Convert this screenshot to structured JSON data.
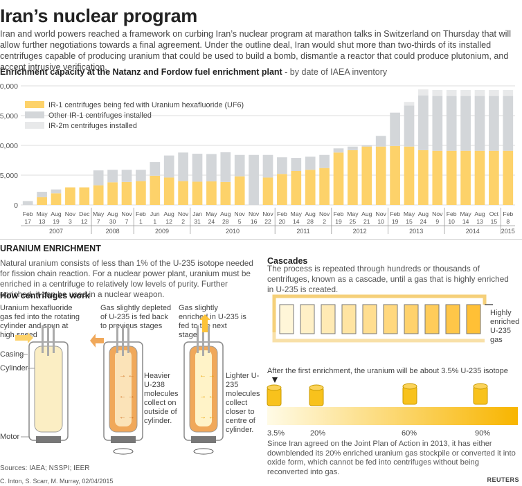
{
  "title": "Iran’s nuclear program",
  "intro": "Iran and world powers reached a framework on curbing Iran’s nuclear program at marathon talks in Switzerland on Thursday that will allow further negotiations towards a final agreement. Under the outline deal, Iran would shut more than two-thirds of its installed centrifuges capable of producing uranium that could be used to build a bomb, dismantle a reactor that could produce plutonium, and accept intrusive verification.",
  "chart_heading": "Enrichment capacity at the Natanz and Fordow fuel enrichment plant",
  "chart_subheading": " - by date of IAEA inventory",
  "colors": {
    "fed": "#fdd26a",
    "installed": "#d3d6d9",
    "ir2m": "#e8e9ea",
    "text": "#555555"
  },
  "chart_data": {
    "type": "bar",
    "stacked": true,
    "ylim": [
      0,
      20000
    ],
    "yticks": [
      "0",
      "5,000",
      "10,000",
      "15,000",
      "20,000"
    ],
    "legend": [
      "IR-1 centrifuges being fed with Uranium hexafluoride (UF6)",
      "Other IR-1 centrifuges installed",
      "IR-2m centrifuges installed"
    ],
    "categories": [
      {
        "m": "Feb",
        "d": "17"
      },
      {
        "m": "May",
        "d": "13"
      },
      {
        "m": "Aug",
        "d": "19"
      },
      {
        "m": "Nov",
        "d": "3"
      },
      {
        "m": "Dec",
        "d": "12"
      },
      {
        "m": "May",
        "d": "7"
      },
      {
        "m": "Aug",
        "d": "30"
      },
      {
        "m": "Nov",
        "d": "7"
      },
      {
        "m": "Feb",
        "d": "1"
      },
      {
        "m": "Jun",
        "d": "1"
      },
      {
        "m": "Aug",
        "d": "12"
      },
      {
        "m": "Nov",
        "d": "2"
      },
      {
        "m": "Jan",
        "d": "31"
      },
      {
        "m": "May",
        "d": "24"
      },
      {
        "m": "Aug",
        "d": "28"
      },
      {
        "m": "Nov",
        "d": "5"
      },
      {
        "m": "Nov",
        "d": "16"
      },
      {
        "m": "Nov",
        "d": "22"
      },
      {
        "m": "Feb",
        "d": "20"
      },
      {
        "m": "May",
        "d": "14"
      },
      {
        "m": "Aug",
        "d": "28"
      },
      {
        "m": "Nov",
        "d": "2"
      },
      {
        "m": "Feb",
        "d": "19"
      },
      {
        "m": "May",
        "d": "25"
      },
      {
        "m": "Aug",
        "d": "21"
      },
      {
        "m": "Nov",
        "d": "10"
      },
      {
        "m": "Feb",
        "d": "19"
      },
      {
        "m": "May",
        "d": "15"
      },
      {
        "m": "Aug",
        "d": "24"
      },
      {
        "m": "Nov",
        "d": "9"
      },
      {
        "m": "Feb",
        "d": "10"
      },
      {
        "m": "May",
        "d": "14"
      },
      {
        "m": "Aug",
        "d": "13"
      },
      {
        "m": "Oct",
        "d": "15"
      },
      {
        "m": "Feb",
        "d": "8"
      }
    ],
    "years": [
      {
        "label": "2007",
        "from": 0,
        "to": 4
      },
      {
        "label": "2008",
        "from": 5,
        "to": 7
      },
      {
        "label": "2009",
        "from": 8,
        "to": 11
      },
      {
        "label": "2010",
        "from": 12,
        "to": 17
      },
      {
        "label": "2011",
        "from": 18,
        "to": 21
      },
      {
        "label": "2012",
        "from": 22,
        "to": 25
      },
      {
        "label": "2013",
        "from": 26,
        "to": 29
      },
      {
        "label": "2014",
        "from": 30,
        "to": 33
      },
      {
        "label": "2015",
        "from": 34,
        "to": 34
      }
    ],
    "series": [
      {
        "name": "IR-1 centrifuges being fed with Uranium hexafluoride (UF6)",
        "values": [
          0,
          1300,
          1950,
          2950,
          2950,
          3300,
          3800,
          3850,
          4000,
          4900,
          4600,
          4000,
          3900,
          3950,
          3850,
          4800,
          0,
          4600,
          5200,
          5700,
          5900,
          6200,
          8800,
          9200,
          9800,
          9800,
          9900,
          9800,
          9200,
          9100,
          9100,
          9100,
          9100,
          9100,
          9100
        ]
      },
      {
        "name": "Other IR-1 centrifuges installed",
        "values": [
          650,
          900,
          650,
          0,
          0,
          2500,
          2100,
          2050,
          1900,
          2300,
          3700,
          4800,
          4700,
          4600,
          5000,
          3600,
          8400,
          3800,
          2800,
          2200,
          2200,
          2200,
          700,
          600,
          200,
          1800,
          5600,
          6900,
          9200,
          9200,
          9200,
          9200,
          9200,
          9200,
          9200
        ]
      },
      {
        "name": "IR-2m centrifuges installed",
        "values": [
          0,
          0,
          0,
          0,
          0,
          0,
          0,
          0,
          0,
          0,
          0,
          0,
          0,
          0,
          0,
          0,
          0,
          0,
          0,
          0,
          0,
          0,
          0,
          0,
          0,
          0,
          0,
          600,
          1000,
          1000,
          1000,
          1000,
          1000,
          1000,
          1000
        ]
      }
    ]
  },
  "enrichment": {
    "heading": "URANIUM ENRICHMENT",
    "text": "Natural uranium consists of less than 1% of the U-235 isotope needed for fission chain reaction. For a nuclear power plant, uranium must be enriched in a centrifuge to relatively low levels of purity. Further enriched, it can be used in a nuclear weapon.",
    "how_heading": "How centrifuges work",
    "step1": "Uranium hexafluoride gas fed into the rotating cylinder and spun at high speed",
    "step2": "Gas slightly depleted of U-235 is fed back to previous stages",
    "step3": "Gas slightly enriched in U-235 is fed to the next stage.",
    "casing": "Casing",
    "cylinder": "Cylinder",
    "motor": "Motor",
    "heavier": "Heavier U-238 molecules collect on outside of cylinder.",
    "lighter": "Lighter U-235 molecules collect closer to centre of cylinder."
  },
  "cascades": {
    "heading": "Cascades",
    "text": "The process is repeated through hundreds or thousands of centrifuges, known as a cascade, until a gas that is highly enriched in U-235 is created.",
    "highly": "Highly enriched U-235 gas",
    "after": "After the first enrichment, the uranium will be about 3.5% U-235 isotope",
    "pct": [
      "3.5%",
      "20%",
      "60%",
      "90%"
    ],
    "since": "Since Iran agreed on the Joint Plan of Action in 2013, it has either downblended its 20% enriched uranium gas stockpile or converted it into oxide form, which cannot be fed into centrifuges without being reconverted into gas."
  },
  "sources": "Sources: IAEA; NSSPI; IEER",
  "credit": "C. Inton, S. Scarr, M. Murray, 02/04/2015",
  "brand": "REUTERS"
}
